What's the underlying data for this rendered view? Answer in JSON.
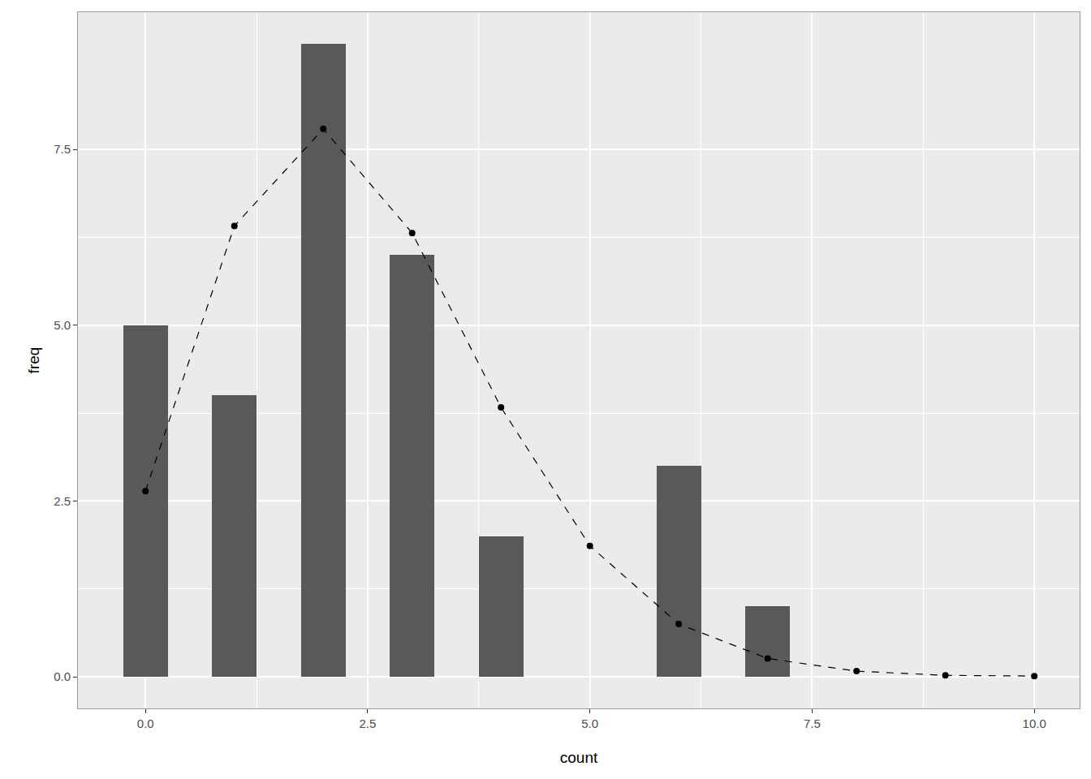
{
  "chart_data": {
    "type": "bar",
    "x_label": "count",
    "y_label": "freq",
    "series": [
      {
        "type": "bar",
        "color": "#595959",
        "x": [
          0,
          1,
          2,
          3,
          4,
          6,
          7
        ],
        "values": [
          5,
          4,
          9,
          6,
          2,
          3,
          1
        ]
      },
      {
        "type": "line",
        "color": "#000000",
        "line_style": "dashed",
        "marker": "circle",
        "x": [
          0,
          1,
          2,
          3,
          4,
          5,
          6,
          7,
          8,
          9,
          10
        ],
        "values": [
          2.64,
          6.41,
          7.79,
          6.31,
          3.83,
          1.86,
          0.75,
          0.26,
          0.08,
          0.02,
          0.01
        ]
      }
    ],
    "xlim": [
      -0.76,
      10.51
    ],
    "xticks": [
      {
        "value": 0,
        "label": "0.0"
      },
      2.5,
      {
        "value": 5,
        "label": "5.0"
      },
      7.5,
      {
        "value": 10,
        "label": "10.0"
      }
    ],
    "ylim": [
      -0.45,
      9.45
    ],
    "yticks": [
      {
        "value": 0,
        "label": "0.0"
      },
      2.5,
      {
        "value": 5,
        "label": "5.0"
      },
      7.5
    ],
    "grid": true
  }
}
